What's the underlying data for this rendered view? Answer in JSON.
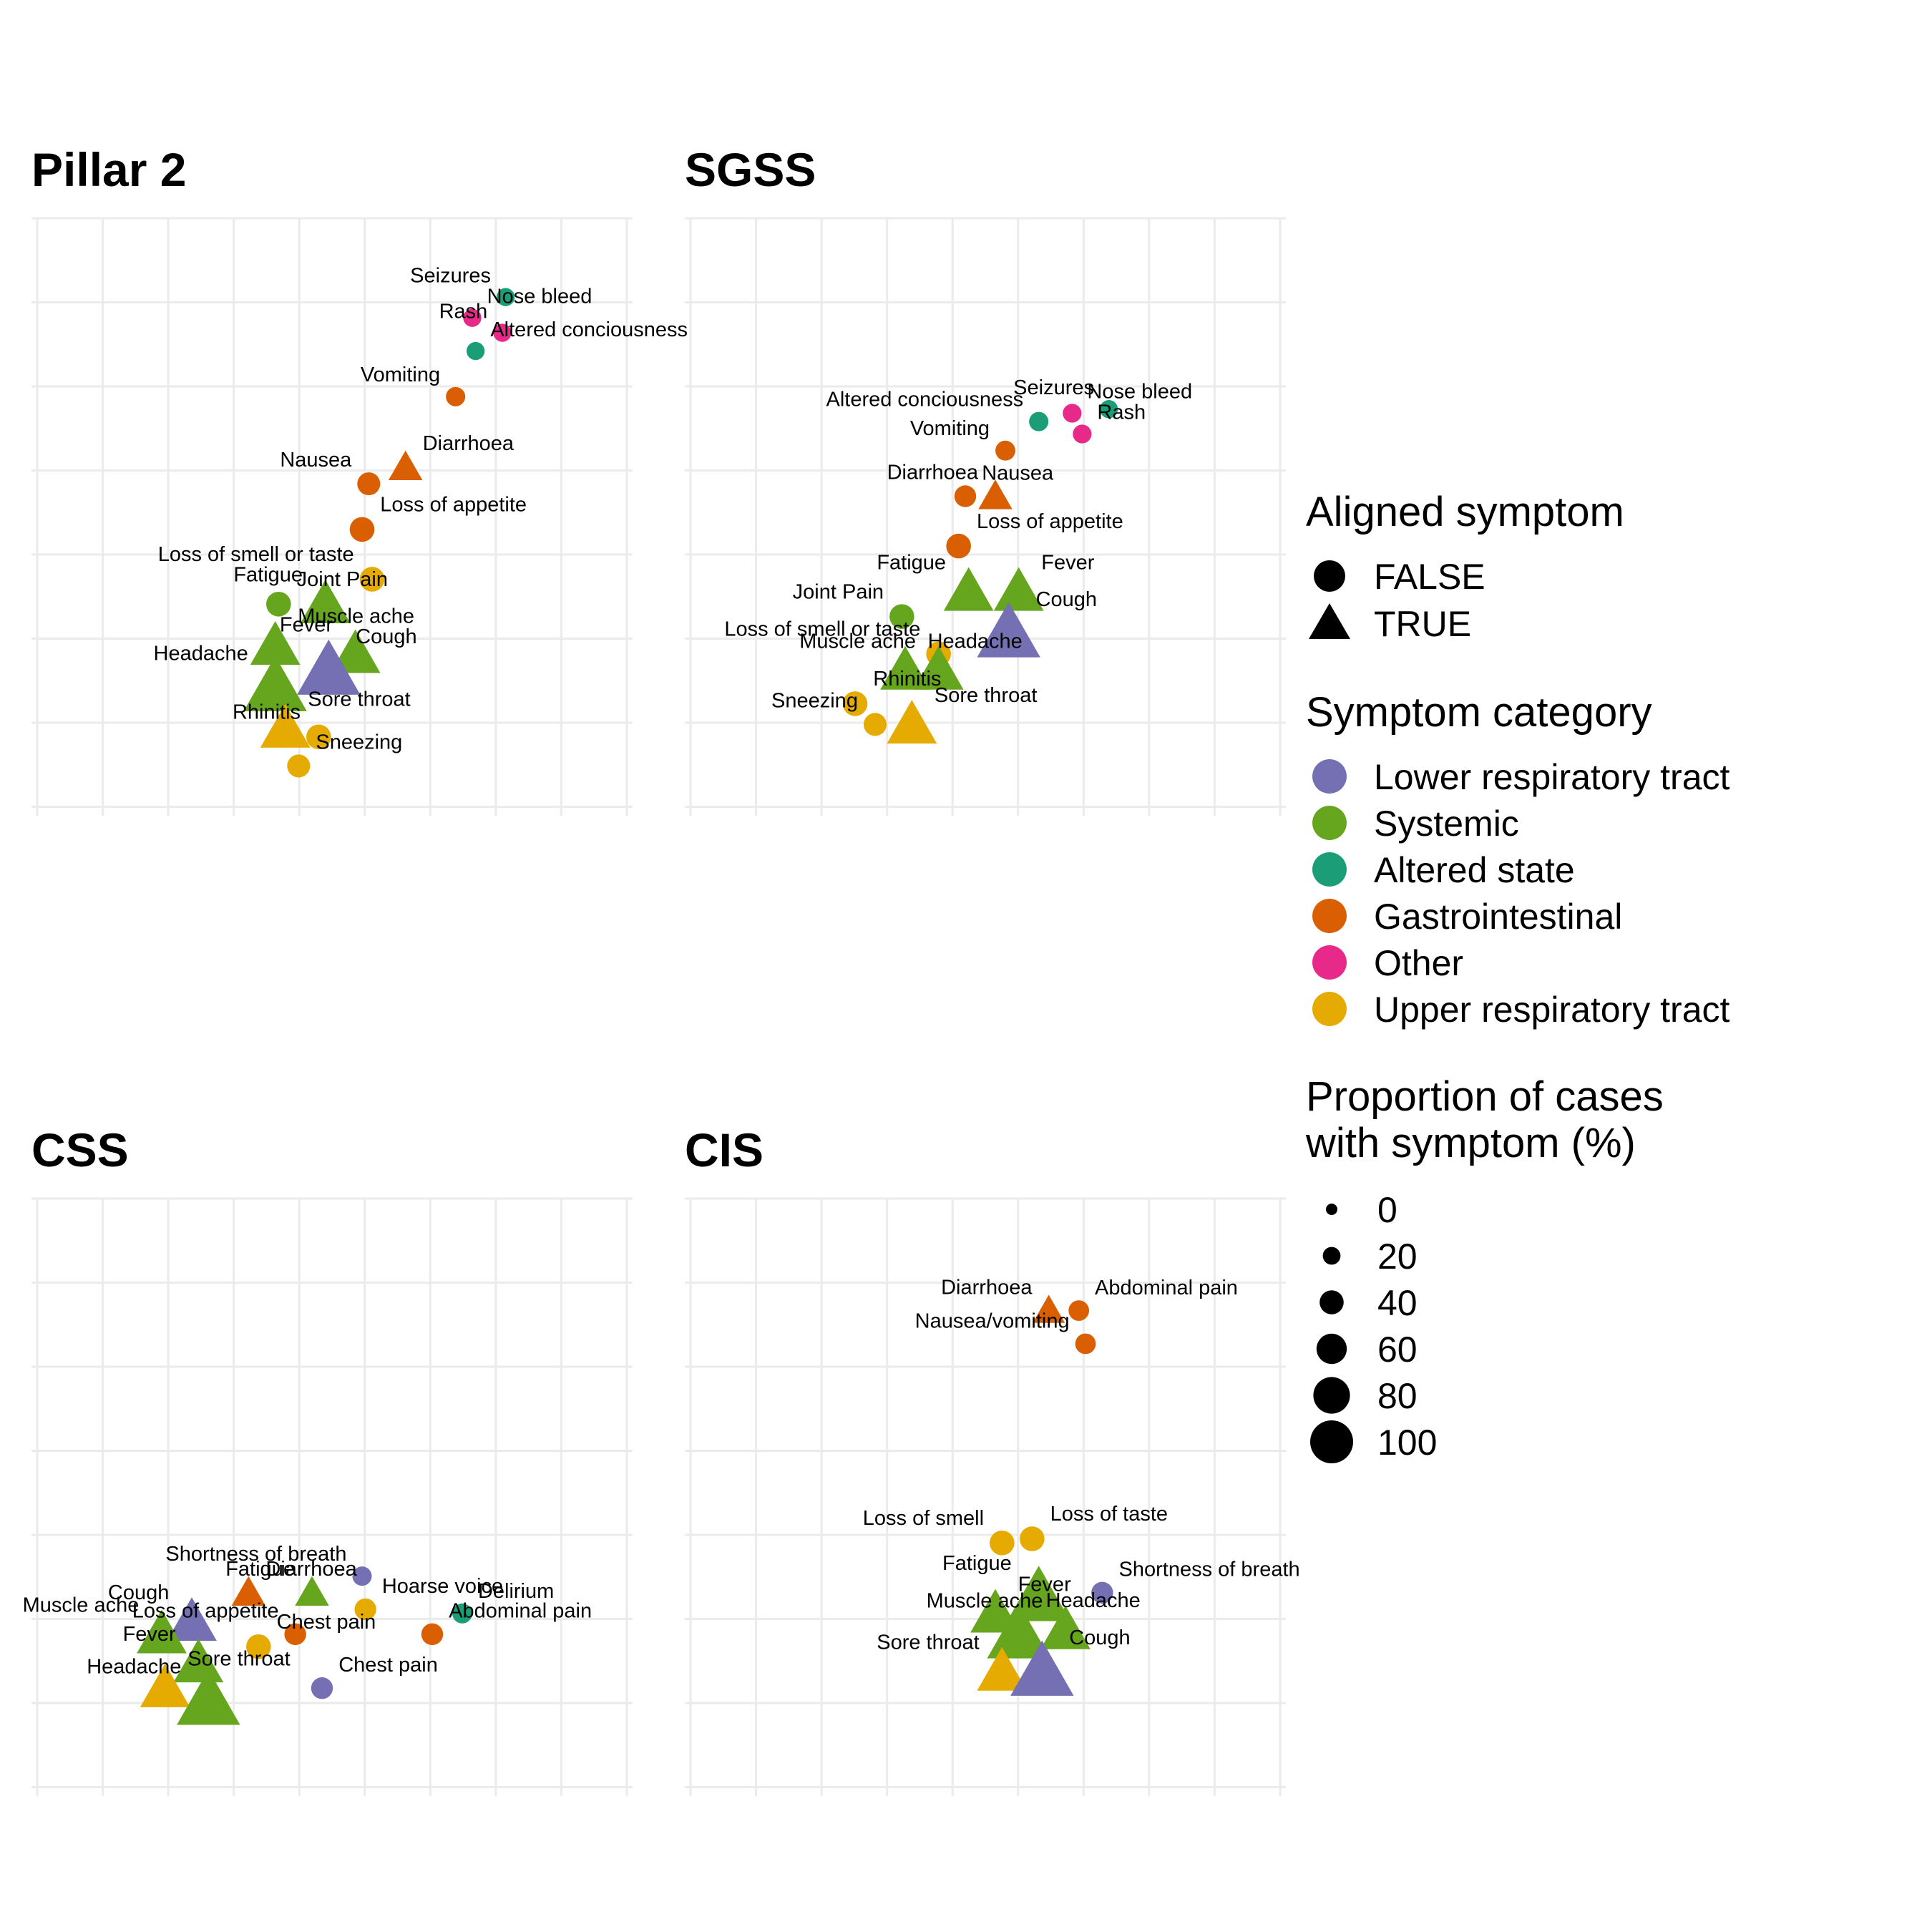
{
  "colors": {
    "Lower respiratory tract": "#7570b3",
    "Systemic": "#66a61e",
    "Altered state": "#1b9e77",
    "Gastrointestinal": "#d95f02",
    "Other": "#e7298a",
    "Upper respiratory tract": "#e6ab02"
  },
  "legend": {
    "aligned_title": "Aligned symptom",
    "aligned_items": [
      {
        "label": "FALSE",
        "shape": "circle"
      },
      {
        "label": "TRUE",
        "shape": "triangle"
      }
    ],
    "category_title": "Symptom category",
    "category_items": [
      "Lower respiratory tract",
      "Systemic",
      "Altered state",
      "Gastrointestinal",
      "Other",
      "Upper respiratory tract"
    ],
    "size_title_line1": "Proportion of cases",
    "size_title_line2": "with symptom (%)",
    "size_items": [
      "0",
      "20",
      "40",
      "60",
      "80",
      "100"
    ]
  },
  "chart_data": [
    {
      "type": "scatter",
      "title": "Pillar 2",
      "grid": true,
      "axis_ticks_shown": false,
      "xlim": [
        0,
        9
      ],
      "ylim": [
        0,
        7.2
      ],
      "points": [
        {
          "label": "Seizures",
          "x": 7.1,
          "y": 6.25,
          "category": "Altered state",
          "aligned": false,
          "prop": 4
        },
        {
          "label": "Nose bleed",
          "x": 6.6,
          "y": 6.0,
          "category": "Other",
          "aligned": false,
          "prop": 4
        },
        {
          "label": "Rash",
          "x": 7.05,
          "y": 5.82,
          "category": "Other",
          "aligned": false,
          "prop": 4
        },
        {
          "label": "Altered conciousness",
          "x": 6.65,
          "y": 5.6,
          "category": "Altered state",
          "aligned": false,
          "prop": 4
        },
        {
          "label": "Vomiting",
          "x": 6.35,
          "y": 5.05,
          "category": "Gastrointestinal",
          "aligned": false,
          "prop": 6
        },
        {
          "label": "Diarrhoea",
          "x": 5.6,
          "y": 4.2,
          "category": "Gastrointestinal",
          "aligned": true,
          "prop": 12
        },
        {
          "label": "Nausea",
          "x": 5.05,
          "y": 4.0,
          "category": "Gastrointestinal",
          "aligned": false,
          "prop": 12
        },
        {
          "label": "Loss of appetite",
          "x": 4.95,
          "y": 3.45,
          "category": "Gastrointestinal",
          "aligned": false,
          "prop": 15
        },
        {
          "label": "Loss of smell or taste",
          "x": 5.1,
          "y": 2.85,
          "category": "Upper respiratory tract",
          "aligned": false,
          "prop": 15
        },
        {
          "label": "Joint Pain",
          "x": 3.7,
          "y": 2.55,
          "category": "Systemic",
          "aligned": false,
          "prop": 15
        },
        {
          "label": "Fatigue",
          "x": 4.4,
          "y": 2.55,
          "category": "Systemic",
          "aligned": true,
          "prop": 30
        },
        {
          "label": "Muscle ache",
          "x": 3.65,
          "y": 2.05,
          "category": "Systemic",
          "aligned": true,
          "prop": 30
        },
        {
          "label": "Fever",
          "x": 4.85,
          "y": 1.95,
          "category": "Systemic",
          "aligned": true,
          "prop": 30
        },
        {
          "label": "Cough",
          "x": 4.45,
          "y": 1.75,
          "category": "Lower respiratory tract",
          "aligned": true,
          "prop": 45
        },
        {
          "label": "Headache",
          "x": 3.65,
          "y": 1.55,
          "category": "Systemic",
          "aligned": true,
          "prop": 45
        },
        {
          "label": "Sore throat",
          "x": 3.8,
          "y": 1.05,
          "category": "Upper respiratory tract",
          "aligned": true,
          "prop": 30
        },
        {
          "label": "Rhinitis",
          "x": 4.3,
          "y": 0.95,
          "category": "Upper respiratory tract",
          "aligned": false,
          "prop": 15
        },
        {
          "label": "Sneezing",
          "x": 4.0,
          "y": 0.6,
          "category": "Upper respiratory tract",
          "aligned": false,
          "prop": 12
        }
      ]
    },
    {
      "type": "scatter",
      "title": "SGSS",
      "grid": true,
      "axis_ticks_shown": false,
      "xlim": [
        0,
        9
      ],
      "ylim": [
        0,
        7.2
      ],
      "points": [
        {
          "label": "Seizures",
          "x": 6.35,
          "y": 4.9,
          "category": "Altered state",
          "aligned": false,
          "prop": 4
        },
        {
          "label": "Nose bleed",
          "x": 5.8,
          "y": 4.85,
          "category": "Other",
          "aligned": false,
          "prop": 5
        },
        {
          "label": "Altered conciousness",
          "x": 5.3,
          "y": 4.75,
          "category": "Altered state",
          "aligned": false,
          "prop": 6
        },
        {
          "label": "Rash",
          "x": 5.95,
          "y": 4.6,
          "category": "Other",
          "aligned": false,
          "prop": 5
        },
        {
          "label": "Vomiting",
          "x": 4.8,
          "y": 4.4,
          "category": "Gastrointestinal",
          "aligned": false,
          "prop": 7
        },
        {
          "label": "Nausea",
          "x": 4.2,
          "y": 3.85,
          "category": "Gastrointestinal",
          "aligned": false,
          "prop": 10
        },
        {
          "label": "Diarrhoea",
          "x": 4.65,
          "y": 3.85,
          "category": "Gastrointestinal",
          "aligned": true,
          "prop": 12
        },
        {
          "label": "Loss of appetite",
          "x": 4.1,
          "y": 3.25,
          "category": "Gastrointestinal",
          "aligned": false,
          "prop": 15
        },
        {
          "label": "Fatigue",
          "x": 4.25,
          "y": 2.7,
          "category": "Systemic",
          "aligned": true,
          "prop": 30
        },
        {
          "label": "Fever",
          "x": 5.0,
          "y": 2.7,
          "category": "Systemic",
          "aligned": true,
          "prop": 30
        },
        {
          "label": "Joint Pain",
          "x": 3.25,
          "y": 2.4,
          "category": "Systemic",
          "aligned": false,
          "prop": 15
        },
        {
          "label": "Cough",
          "x": 4.85,
          "y": 2.2,
          "category": "Lower respiratory tract",
          "aligned": true,
          "prop": 45
        },
        {
          "label": "Loss of smell or taste",
          "x": 3.8,
          "y": 1.95,
          "category": "Upper respiratory tract",
          "aligned": false,
          "prop": 15
        },
        {
          "label": "Headache",
          "x": 3.3,
          "y": 1.75,
          "category": "Systemic",
          "aligned": true,
          "prop": 30
        },
        {
          "label": "Muscle ache",
          "x": 3.8,
          "y": 1.75,
          "category": "Systemic",
          "aligned": true,
          "prop": 30
        },
        {
          "label": "Rhinitis",
          "x": 2.55,
          "y": 1.35,
          "category": "Upper respiratory tract",
          "aligned": false,
          "prop": 15
        },
        {
          "label": "Sneezing",
          "x": 2.85,
          "y": 1.1,
          "category": "Upper respiratory tract",
          "aligned": false,
          "prop": 12
        },
        {
          "label": "Sore throat",
          "x": 3.4,
          "y": 1.1,
          "category": "Upper respiratory tract",
          "aligned": true,
          "prop": 30
        }
      ]
    },
    {
      "type": "scatter",
      "title": "CSS",
      "grid": true,
      "axis_ticks_shown": false,
      "xlim": [
        0,
        9
      ],
      "ylim": [
        0,
        7.2
      ],
      "points": [
        {
          "label": "Shortness of breath",
          "x": 4.95,
          "y": 2.65,
          "category": "Lower respiratory tract",
          "aligned": false,
          "prop": 6
        },
        {
          "label": "Diarrhoea",
          "x": 3.25,
          "y": 2.45,
          "category": "Gastrointestinal",
          "aligned": true,
          "prop": 12
        },
        {
          "label": "Fatigue",
          "x": 4.2,
          "y": 2.45,
          "category": "Systemic",
          "aligned": true,
          "prop": 12
        },
        {
          "label": "Delirium",
          "x": 6.45,
          "y": 2.2,
          "category": "Altered state",
          "aligned": false,
          "prop": 7
        },
        {
          "label": "Cough",
          "x": 2.4,
          "y": 2.1,
          "category": "Lower respiratory tract",
          "aligned": true,
          "prop": 30
        },
        {
          "label": "Hoarse voice",
          "x": 5.0,
          "y": 2.25,
          "category": "Upper respiratory tract",
          "aligned": false,
          "prop": 10
        },
        {
          "label": "Loss of appetite",
          "x": 3.95,
          "y": 1.95,
          "category": "Gastrointestinal",
          "aligned": false,
          "prop": 10
        },
        {
          "label": "Abdominal pain",
          "x": 6.0,
          "y": 1.95,
          "category": "Gastrointestinal",
          "aligned": false,
          "prop": 10
        },
        {
          "label": "Muscle ache",
          "x": 1.95,
          "y": 1.95,
          "category": "Systemic",
          "aligned": true,
          "prop": 30
        },
        {
          "label": "Chest pain",
          "x": 3.4,
          "y": 1.8,
          "category": "Upper respiratory tract",
          "aligned": false,
          "prop": 15
        },
        {
          "label": "Fever",
          "x": 2.5,
          "y": 1.6,
          "category": "Systemic",
          "aligned": true,
          "prop": 30
        },
        {
          "label": "Sore throat",
          "x": 2.0,
          "y": 1.3,
          "category": "Upper respiratory tract",
          "aligned": true,
          "prop": 30
        },
        {
          "label": "Headache",
          "x": 2.65,
          "y": 1.15,
          "category": "Systemic",
          "aligned": true,
          "prop": 45
        },
        {
          "label": "Chest pain ",
          "x": 4.35,
          "y": 1.3,
          "category": "Lower respiratory tract",
          "aligned": false,
          "prop": 10
        }
      ]
    },
    {
      "type": "scatter",
      "title": "CIS",
      "grid": true,
      "axis_ticks_shown": false,
      "xlim": [
        0,
        9
      ],
      "ylim": [
        0,
        7.2
      ],
      "points": [
        {
          "label": "Diarrhoea",
          "x": 5.45,
          "y": 5.85,
          "category": "Gastrointestinal",
          "aligned": true,
          "prop": 10
        },
        {
          "label": "Abdominal pain",
          "x": 5.9,
          "y": 5.85,
          "category": "Gastrointestinal",
          "aligned": false,
          "prop": 8
        },
        {
          "label": "Nausea/vomiting",
          "x": 6.0,
          "y": 5.45,
          "category": "Gastrointestinal",
          "aligned": false,
          "prop": 8
        },
        {
          "label": "Loss of taste",
          "x": 5.2,
          "y": 3.1,
          "category": "Upper respiratory tract",
          "aligned": false,
          "prop": 15
        },
        {
          "label": "Loss of smell",
          "x": 4.75,
          "y": 3.05,
          "category": "Upper respiratory tract",
          "aligned": false,
          "prop": 15
        },
        {
          "label": "Shortness of breath",
          "x": 6.25,
          "y": 2.45,
          "category": "Lower respiratory tract",
          "aligned": false,
          "prop": 10
        },
        {
          "label": "Fatigue",
          "x": 5.3,
          "y": 2.4,
          "category": "Systemic",
          "aligned": true,
          "prop": 45
        },
        {
          "label": "Fever",
          "x": 4.65,
          "y": 2.2,
          "category": "Systemic",
          "aligned": true,
          "prop": 30
        },
        {
          "label": "Muscle ache",
          "x": 5.7,
          "y": 2.0,
          "category": "Systemic",
          "aligned": true,
          "prop": 30
        },
        {
          "label": "Headache",
          "x": 5.0,
          "y": 1.95,
          "category": "Systemic",
          "aligned": true,
          "prop": 45
        },
        {
          "label": "Sore throat",
          "x": 4.75,
          "y": 1.5,
          "category": "Upper respiratory tract",
          "aligned": true,
          "prop": 30
        },
        {
          "label": "Cough",
          "x": 5.35,
          "y": 1.5,
          "category": "Lower respiratory tract",
          "aligned": true,
          "prop": 45
        }
      ]
    }
  ]
}
